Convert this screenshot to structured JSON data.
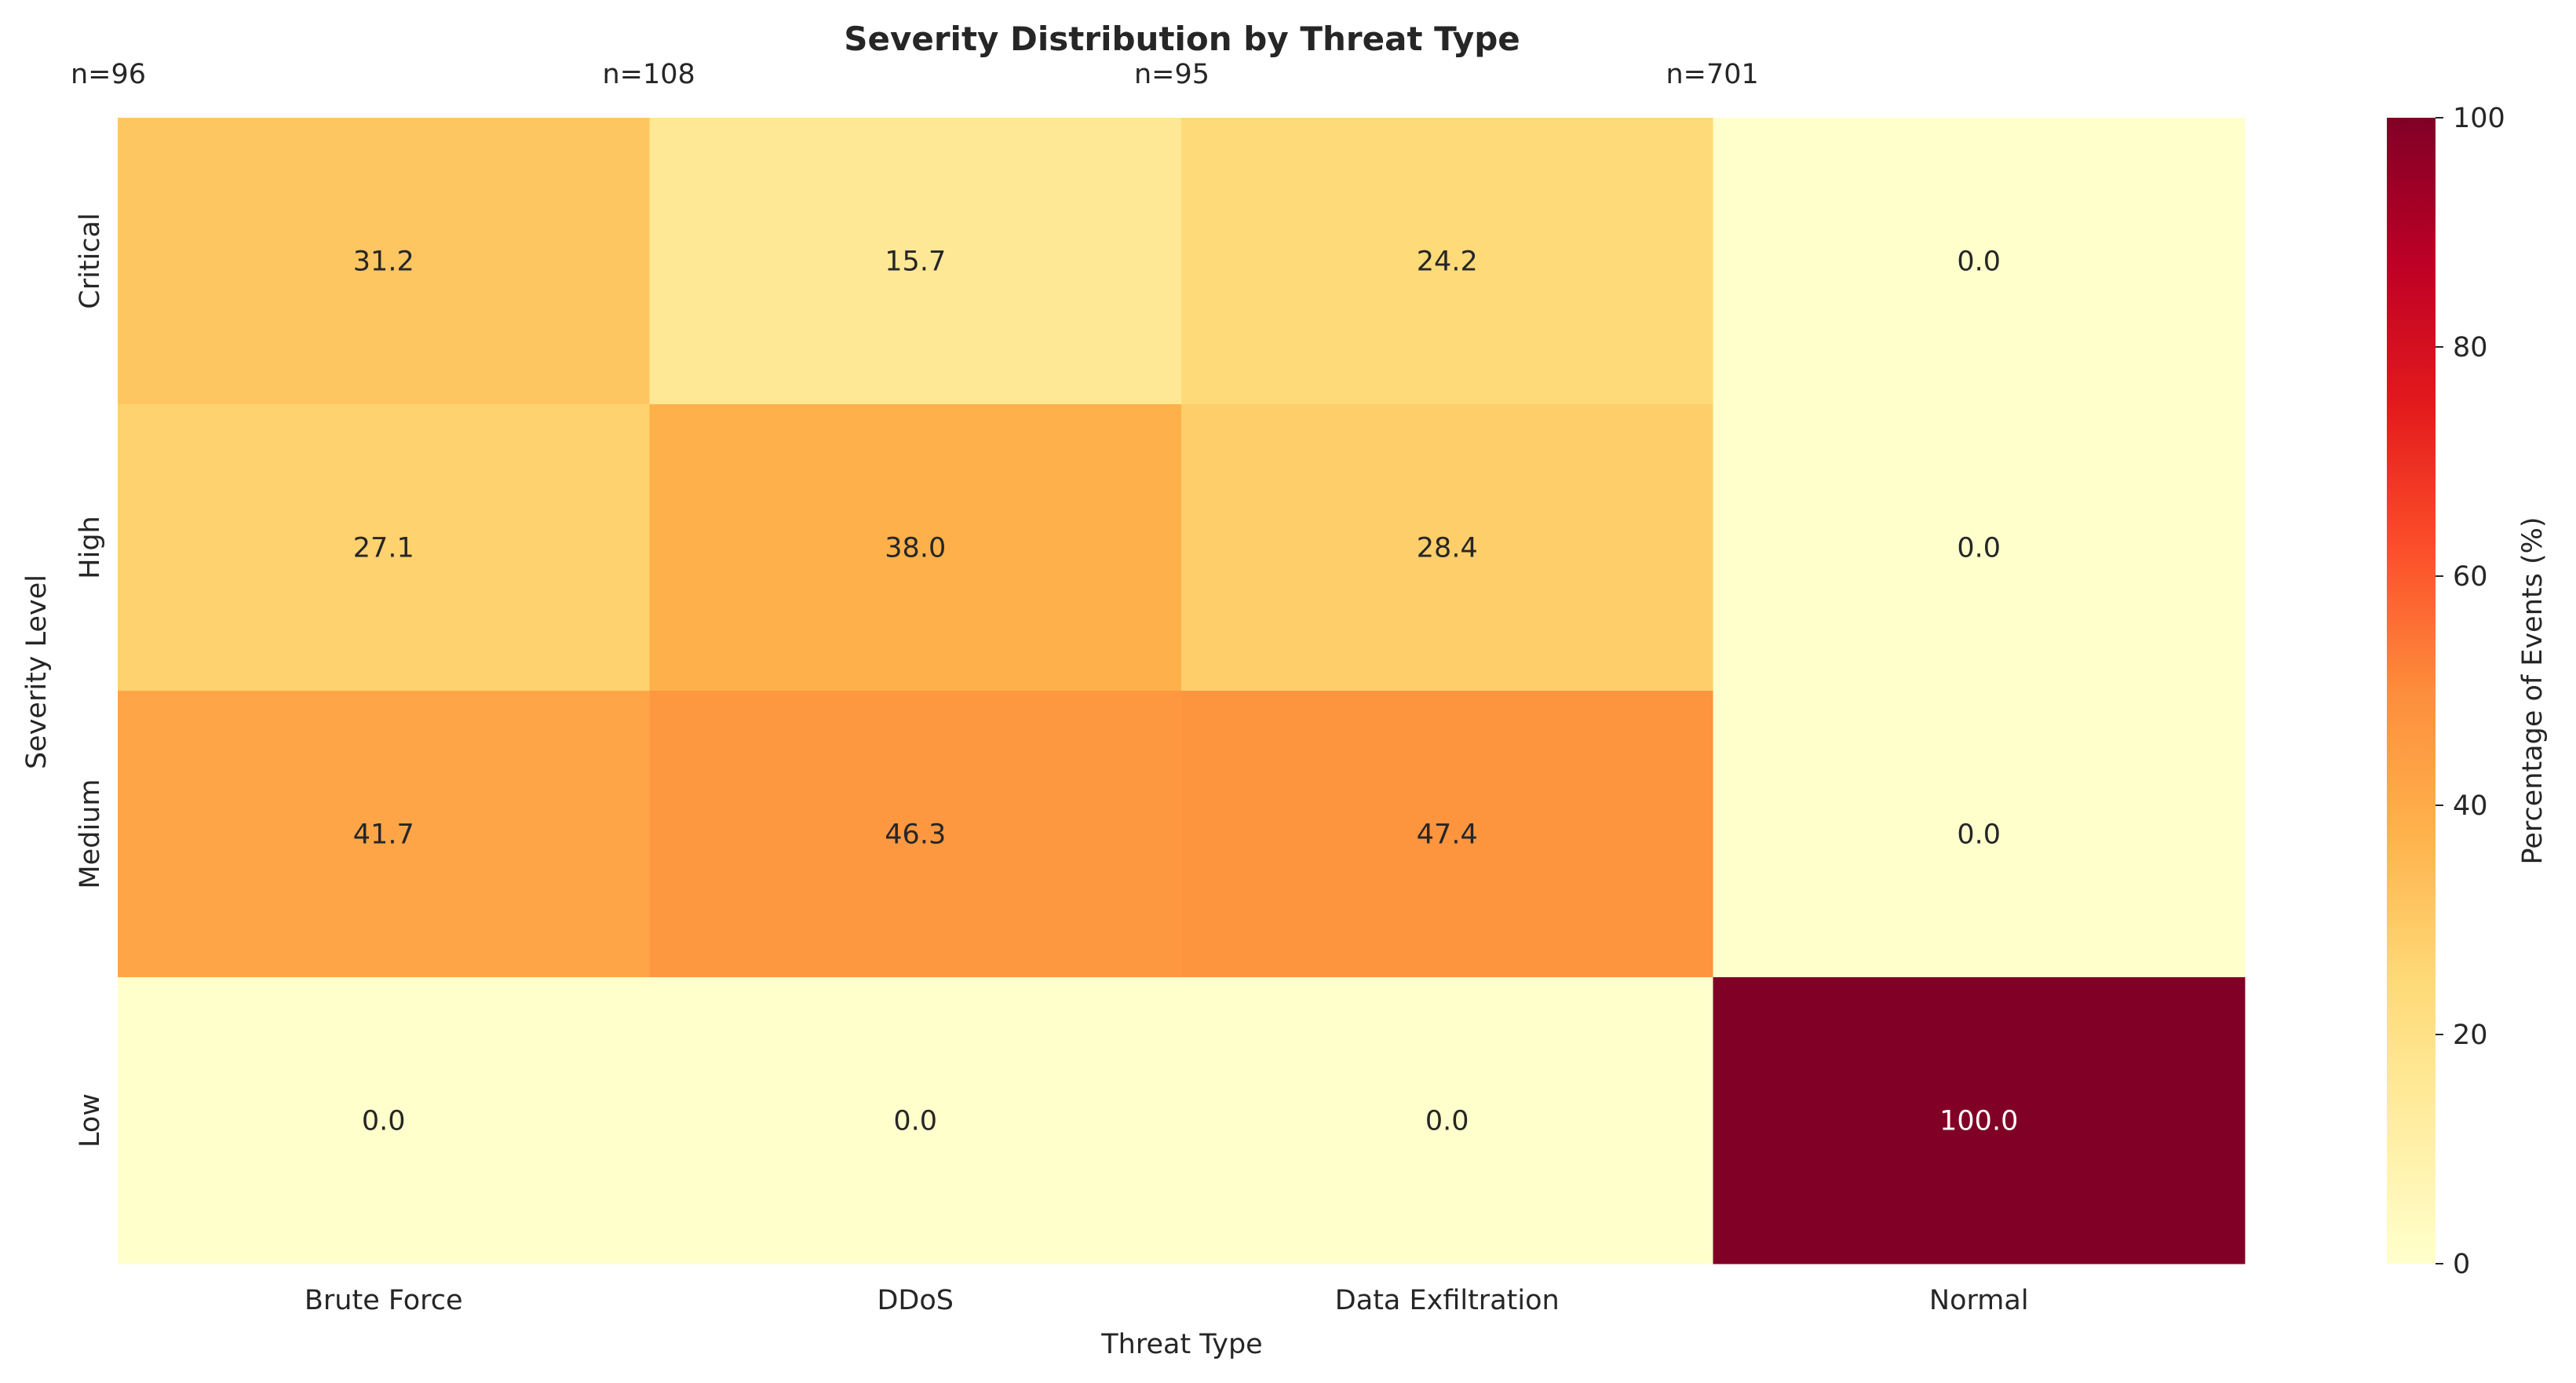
{
  "chart_data": {
    "type": "heatmap",
    "title": "Severity Distribution by Threat Type",
    "xlabel": "Threat Type",
    "ylabel": "Severity Level",
    "x_categories": [
      "Brute Force",
      "DDoS",
      "Data Exfiltration",
      "Normal"
    ],
    "y_categories": [
      "Critical",
      "High",
      "Medium",
      "Low"
    ],
    "column_annotations": [
      "n=96",
      "n=108",
      "n=95",
      "n=701"
    ],
    "values": [
      [
        31.2,
        15.7,
        24.2,
        0.0
      ],
      [
        27.1,
        38.0,
        28.4,
        0.0
      ],
      [
        41.7,
        46.3,
        47.4,
        0.0
      ],
      [
        0.0,
        0.0,
        0.0,
        100.0
      ]
    ],
    "value_format": "0.0",
    "colorbar": {
      "label": "Percentage of Events (%)",
      "range": [
        0,
        100
      ],
      "ticks": [
        0,
        20,
        40,
        60,
        80,
        100
      ],
      "colormap": "YlOrRd"
    }
  }
}
